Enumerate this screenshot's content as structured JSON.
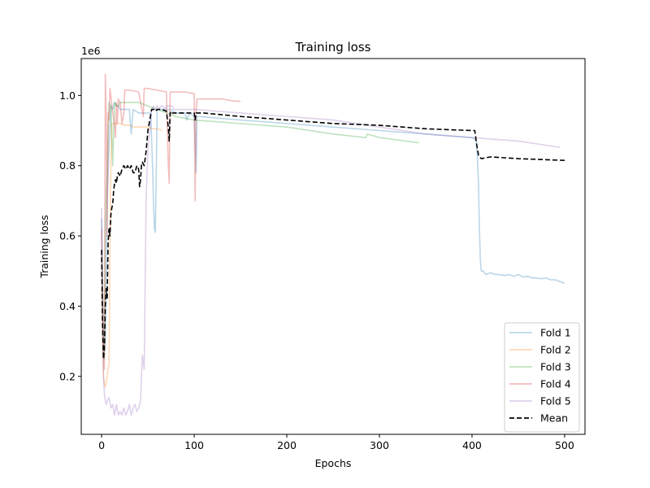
{
  "chart_data": {
    "type": "line",
    "title": "Training loss",
    "xlabel": "Epochs",
    "ylabel": "Training loss",
    "y_offset_text": "1e6",
    "xlim": [
      -22,
      522
    ],
    "ylim": [
      0.035,
      1.105
    ],
    "xticks": [
      0,
      100,
      200,
      300,
      400,
      500
    ],
    "yticks": [
      0.2,
      0.4,
      0.6,
      0.8,
      1.0
    ],
    "xtick_labels": [
      "0",
      "100",
      "200",
      "300",
      "400",
      "500"
    ],
    "ytick_labels": [
      "0.2",
      "0.4",
      "0.6",
      "0.8",
      "1.0"
    ],
    "grid": false,
    "legend_position": "lower-right",
    "series": [
      {
        "name": "Fold 1",
        "color": "#1f77b4",
        "opacity": 0.3,
        "style": "solid",
        "x": [
          0,
          2,
          4,
          6,
          8,
          10,
          12,
          14,
          16,
          18,
          20,
          25,
          30,
          32,
          34,
          40,
          45,
          50,
          53,
          55,
          56,
          57,
          58,
          60,
          65,
          70,
          75,
          80,
          85,
          90,
          92,
          95,
          100,
          102,
          103,
          105,
          150,
          200,
          250,
          300,
          350,
          400,
          405,
          407,
          408,
          409,
          410,
          412,
          415,
          420,
          425,
          430,
          435,
          440,
          445,
          450,
          455,
          460,
          465,
          470,
          475,
          480,
          485,
          490,
          495,
          500
        ],
        "y": [
          0.65,
          0.25,
          0.3,
          0.7,
          0.85,
          0.97,
          0.96,
          0.98,
          0.97,
          0.97,
          0.96,
          0.96,
          0.96,
          0.89,
          0.96,
          0.95,
          0.95,
          0.95,
          0.95,
          0.8,
          0.7,
          0.62,
          0.61,
          0.96,
          0.96,
          0.96,
          0.96,
          0.95,
          0.95,
          0.95,
          0.93,
          0.95,
          0.94,
          0.78,
          0.94,
          0.94,
          0.93,
          0.92,
          0.91,
          0.9,
          0.89,
          0.88,
          0.87,
          0.75,
          0.62,
          0.53,
          0.5,
          0.5,
          0.49,
          0.495,
          0.49,
          0.49,
          0.487,
          0.49,
          0.485,
          0.49,
          0.483,
          0.485,
          0.48,
          0.48,
          0.478,
          0.48,
          0.475,
          0.475,
          0.47,
          0.465
        ]
      },
      {
        "name": "Fold 2",
        "color": "#ff7f0e",
        "opacity": 0.3,
        "style": "solid",
        "x": [
          0,
          1,
          2,
          3,
          4,
          5,
          6,
          7,
          8,
          9,
          10,
          11,
          12,
          13,
          15,
          18,
          20,
          25,
          30,
          35,
          40,
          45,
          50,
          55,
          60,
          65
        ],
        "y": [
          0.45,
          0.3,
          0.2,
          0.18,
          0.17,
          0.18,
          0.2,
          0.22,
          0.24,
          0.55,
          0.8,
          0.92,
          0.92,
          0.92,
          0.92,
          0.92,
          0.92,
          0.915,
          0.915,
          0.91,
          0.91,
          0.91,
          0.91,
          0.905,
          0.905,
          0.9
        ]
      },
      {
        "name": "Fold 3",
        "color": "#2ca02c",
        "opacity": 0.3,
        "style": "solid",
        "x": [
          0,
          1,
          2,
          3,
          4,
          5,
          6,
          8,
          10,
          12,
          14,
          16,
          18,
          20,
          25,
          30,
          40,
          50,
          60,
          80,
          100,
          150,
          200,
          250,
          285,
          287,
          300,
          343
        ],
        "y": [
          0.55,
          0.4,
          0.3,
          0.25,
          0.6,
          0.72,
          0.8,
          0.98,
          0.97,
          0.8,
          0.98,
          0.97,
          0.97,
          0.98,
          0.98,
          0.98,
          0.98,
          0.97,
          0.96,
          0.94,
          0.93,
          0.92,
          0.91,
          0.89,
          0.88,
          0.89,
          0.88,
          0.865
        ]
      },
      {
        "name": "Fold 4",
        "color": "#d62728",
        "opacity": 0.3,
        "style": "solid",
        "x": [
          0,
          1,
          2,
          3,
          4,
          5,
          6,
          7,
          8,
          9,
          10,
          12,
          14,
          15,
          16,
          17,
          18,
          20,
          22,
          24,
          25,
          30,
          40,
          45,
          46,
          50,
          60,
          70,
          72,
          73,
          74,
          75,
          76,
          80,
          90,
          100,
          101,
          102,
          103,
          104,
          110,
          120,
          130,
          140,
          150
        ],
        "y": [
          0.62,
          0.45,
          0.3,
          0.22,
          1.06,
          0.95,
          0.6,
          0.95,
          0.93,
          1.02,
          1.0,
          0.95,
          0.92,
          0.88,
          0.98,
          0.92,
          0.99,
          0.98,
          0.92,
          0.95,
          1.015,
          1.015,
          1.01,
          0.94,
          1.02,
          1.02,
          1.015,
          1.01,
          0.8,
          0.75,
          1.01,
          1.01,
          1.01,
          1.01,
          1.01,
          1.005,
          0.7,
          0.95,
          0.99,
          0.99,
          0.99,
          0.99,
          0.99,
          0.985,
          0.983
        ]
      },
      {
        "name": "Fold 5",
        "color": "#9467bd",
        "opacity": 0.3,
        "style": "solid",
        "x": [
          0,
          1,
          2,
          3,
          4,
          5,
          6,
          8,
          10,
          12,
          14,
          16,
          18,
          20,
          22,
          24,
          26,
          28,
          30,
          32,
          34,
          36,
          38,
          40,
          42,
          44,
          46,
          48,
          50,
          52,
          54,
          56,
          58,
          60,
          62,
          64,
          66,
          68,
          70,
          72,
          74,
          76,
          78,
          80,
          90,
          100,
          150,
          200,
          250,
          300,
          350,
          400,
          450,
          495
        ],
        "y": [
          0.68,
          0.4,
          0.2,
          0.15,
          0.13,
          0.12,
          0.13,
          0.14,
          0.11,
          0.12,
          0.09,
          0.12,
          0.09,
          0.1,
          0.09,
          0.11,
          0.09,
          0.1,
          0.12,
          0.09,
          0.11,
          0.12,
          0.1,
          0.11,
          0.13,
          0.26,
          0.22,
          0.7,
          0.85,
          0.9,
          0.96,
          0.97,
          0.96,
          0.97,
          0.96,
          0.97,
          0.97,
          0.96,
          0.97,
          0.97,
          0.97,
          0.97,
          0.96,
          0.96,
          0.96,
          0.96,
          0.95,
          0.94,
          0.93,
          0.91,
          0.89,
          0.88,
          0.87,
          0.852
        ]
      },
      {
        "name": "Mean",
        "color": "#000000",
        "opacity": 1,
        "style": "dashed",
        "x": [
          0,
          1,
          2,
          3,
          4,
          5,
          6,
          7,
          8,
          9,
          10,
          11,
          12,
          13,
          14,
          15,
          16,
          17,
          18,
          20,
          22,
          24,
          26,
          28,
          30,
          32,
          34,
          36,
          38,
          40,
          41,
          42,
          43,
          44,
          46,
          48,
          50,
          52,
          54,
          56,
          58,
          60,
          65,
          70,
          72,
          73,
          74,
          75,
          76,
          80,
          90,
          100,
          101,
          102,
          103,
          104,
          110,
          150,
          200,
          250,
          300,
          350,
          400,
          403,
          405,
          407,
          410,
          420,
          450,
          500
        ],
        "y": [
          0.56,
          0.35,
          0.25,
          0.28,
          0.4,
          0.45,
          0.42,
          0.58,
          0.62,
          0.6,
          0.66,
          0.68,
          0.69,
          0.73,
          0.75,
          0.76,
          0.75,
          0.77,
          0.78,
          0.77,
          0.79,
          0.8,
          0.79,
          0.8,
          0.79,
          0.8,
          0.78,
          0.78,
          0.8,
          0.79,
          0.74,
          0.76,
          0.8,
          0.81,
          0.8,
          0.84,
          0.9,
          0.93,
          0.96,
          0.96,
          0.955,
          0.96,
          0.96,
          0.955,
          0.91,
          0.87,
          0.95,
          0.955,
          0.95,
          0.95,
          0.95,
          0.95,
          0.93,
          0.95,
          0.95,
          0.95,
          0.95,
          0.94,
          0.93,
          0.92,
          0.915,
          0.905,
          0.9,
          0.9,
          0.86,
          0.83,
          0.82,
          0.825,
          0.82,
          0.815
        ]
      }
    ]
  }
}
